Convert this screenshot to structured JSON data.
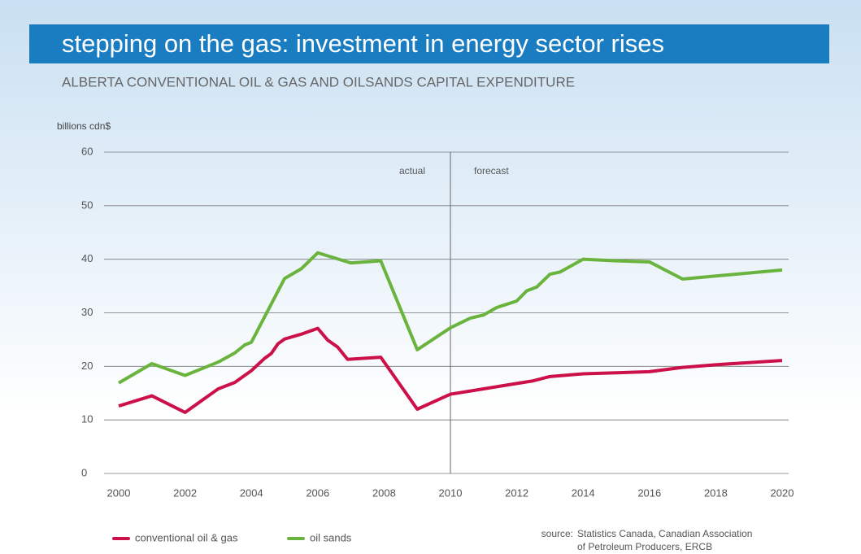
{
  "chart_data": {
    "type": "line",
    "title": "stepping on the gas: investment in energy sector rises",
    "subtitle": "ALBERTA CONVENTIONAL OIL & GAS AND OILSANDS CAPITAL EXPENDITURE",
    "y_label": "billions cdn$",
    "annotations": [
      "actual",
      "forecast"
    ],
    "divider_x": 2010,
    "source_label": "source:",
    "source": [
      "Statistics Canada, Canadian Association",
      "of Petroleum Producers, ERCB"
    ],
    "xlim": [
      2000,
      2020
    ],
    "xticks": [
      2000,
      2002,
      2004,
      2006,
      2008,
      2010,
      2012,
      2014,
      2016,
      2018,
      2020
    ],
    "ylim": [
      0,
      60
    ],
    "yticks": [
      0,
      10,
      20,
      30,
      40,
      50,
      60
    ],
    "grid": true,
    "series": [
      {
        "name": "conventional oil & gas",
        "color": "#cc1049",
        "x": [
          2000,
          2001,
          2002,
          2003,
          2003.5,
          2004,
          2004.4,
          2004.6,
          2004.8,
          2005,
          2005.5,
          2006,
          2006.3,
          2006.6,
          2006.9,
          2007.9,
          2009,
          2010,
          2011,
          2012,
          2012.5,
          2013,
          2014,
          2015,
          2016,
          2017,
          2018,
          2019,
          2020
        ],
        "values": [
          12.6,
          14.5,
          11.4,
          15.8,
          17,
          19.2,
          21.5,
          22.4,
          24.2,
          25.1,
          26,
          27.1,
          24.9,
          23.6,
          21.3,
          21.7,
          12,
          14.8,
          15.8,
          16.8,
          17.3,
          18.1,
          18.6,
          18.8,
          19,
          19.8,
          20.3,
          20.7,
          21.1
        ]
      },
      {
        "name": "oil sands",
        "color": "#6ab43e",
        "x": [
          2000,
          2001,
          2002,
          2003,
          2003.5,
          2003.8,
          2004,
          2005,
          2005.5,
          2006,
          2007,
          2007.9,
          2009,
          2010,
          2010.6,
          2011,
          2011.4,
          2012,
          2012.3,
          2012.6,
          2013,
          2013.3,
          2014,
          2015,
          2016,
          2017,
          2020
        ],
        "values": [
          16.9,
          20.5,
          18.3,
          20.8,
          22.5,
          24,
          24.5,
          36.4,
          38.2,
          41.2,
          39.3,
          39.7,
          23.1,
          27.2,
          29,
          29.6,
          31,
          32.2,
          34.1,
          34.8,
          37.2,
          37.6,
          40,
          39.7,
          39.5,
          36.3,
          38
        ]
      }
    ]
  }
}
